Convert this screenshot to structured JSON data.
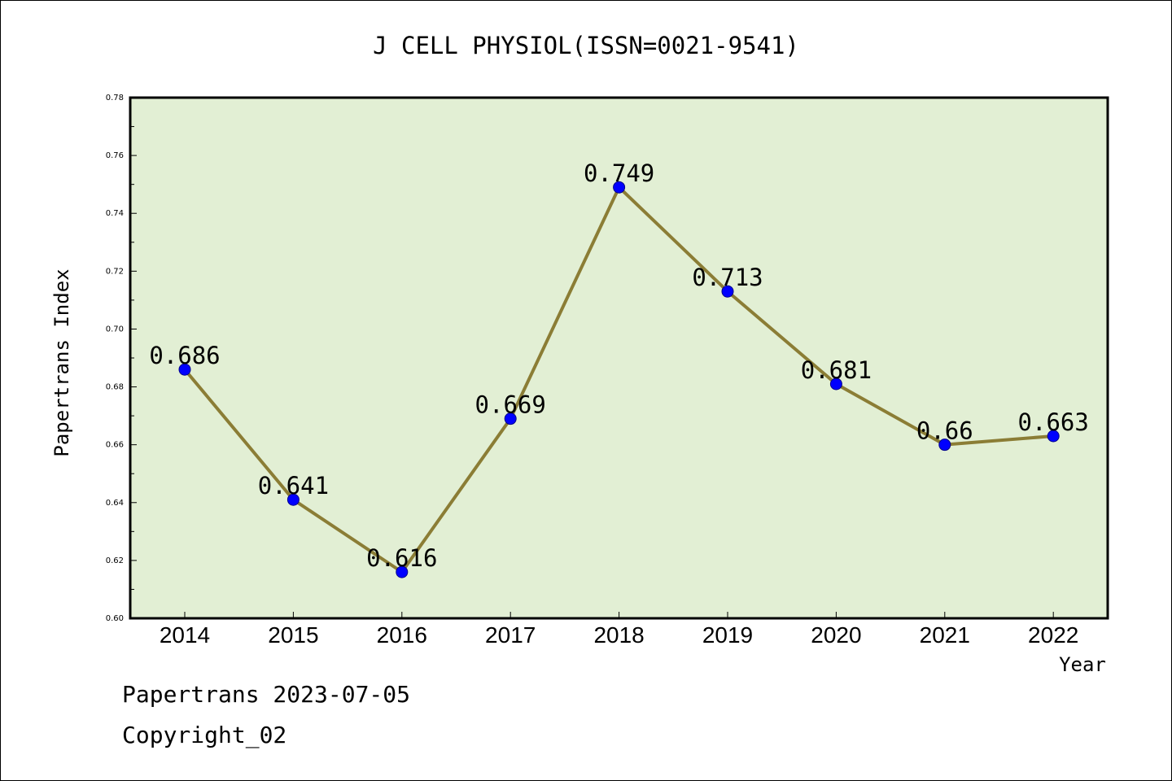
{
  "chart_data": {
    "type": "line",
    "title": "J CELL PHYSIOL(ISSN=0021-9541)",
    "xlabel": "Year",
    "ylabel": "Papertrans Index",
    "x": [
      "2014",
      "2015",
      "2016",
      "2017",
      "2018",
      "2019",
      "2020",
      "2021",
      "2022"
    ],
    "values": [
      0.686,
      0.641,
      0.616,
      0.669,
      0.749,
      0.713,
      0.681,
      0.66,
      0.663
    ],
    "data_labels": [
      "0.686",
      "0.641",
      "0.616",
      "0.669",
      "0.749",
      "0.713",
      "0.681",
      "0.66",
      "0.663"
    ],
    "ylim": [
      0.6,
      0.78
    ],
    "yticks": [
      "0.60",
      "0.62",
      "0.64",
      "0.66",
      "0.68",
      "0.70",
      "0.72",
      "0.74",
      "0.76",
      "0.78"
    ],
    "grid": false,
    "colors": {
      "plot_background": "#e2efd4",
      "line": "#8b7d35",
      "marker": "#0000ff"
    }
  },
  "footer": {
    "line1": "Papertrans 2023-07-05",
    "line2": "Copyright_02"
  }
}
